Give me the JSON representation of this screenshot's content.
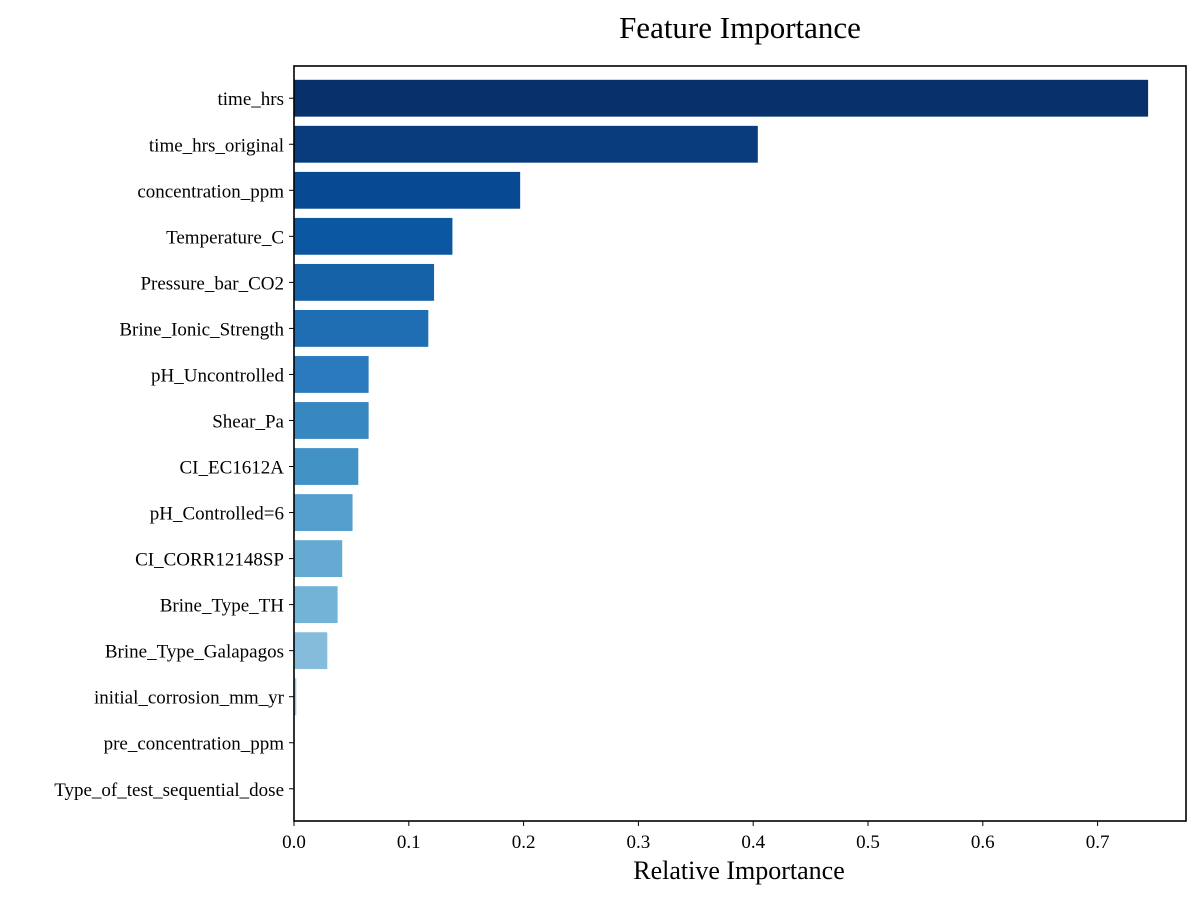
{
  "chart_data": {
    "type": "bar",
    "orientation": "horizontal",
    "title": "Feature Importance",
    "xlabel": "Relative Importance",
    "ylabel": "",
    "xlim": [
      0,
      0.777
    ],
    "xticks": [
      0.0,
      0.1,
      0.2,
      0.3,
      0.4,
      0.5,
      0.6,
      0.7
    ],
    "xtick_labels": [
      "0.0",
      "0.1",
      "0.2",
      "0.3",
      "0.4",
      "0.5",
      "0.6",
      "0.7"
    ],
    "grid": false,
    "legend": "none",
    "colormap": "Blues (darker = more important)",
    "categories": [
      "time_hrs",
      "time_hrs_original",
      "concentration_ppm",
      "Temperature_C",
      "Pressure_bar_CO2",
      "Brine_Ionic_Strength",
      "pH_Uncontrolled",
      "Shear_Pa",
      "CI_EC1612A",
      "pH_Controlled=6",
      "CI_CORR12148SP",
      "Brine_Type_TH",
      "Brine_Type_Galapagos",
      "initial_corrosion_mm_yr",
      "pre_concentration_ppm",
      "Type_of_test_sequential_dose"
    ],
    "values": [
      0.744,
      0.404,
      0.197,
      0.138,
      0.122,
      0.117,
      0.065,
      0.065,
      0.056,
      0.051,
      0.042,
      0.038,
      0.029,
      0.002,
      0.0,
      0.0
    ],
    "colors": [
      "#08306b",
      "#083c7d",
      "#084a91",
      "#0b57a1",
      "#1562a9",
      "#1f6eb3",
      "#2a7abd",
      "#3787c0",
      "#4292c6",
      "#539ecd",
      "#65aad3",
      "#74b3d8",
      "#85bcdc",
      "#9ac8e0",
      "#afd1e7",
      "#c6dbef"
    ]
  }
}
